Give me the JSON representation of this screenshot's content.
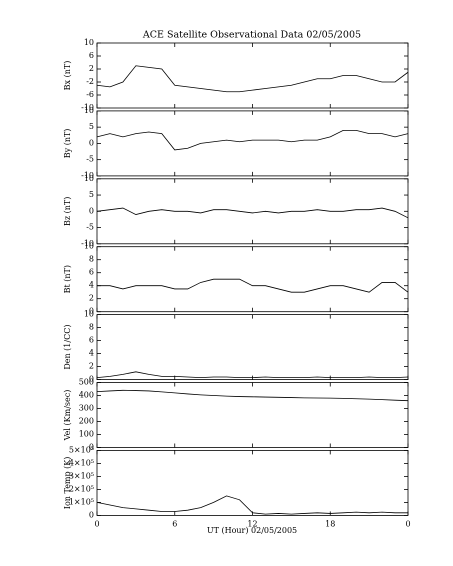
{
  "title": "ACE Satellite Observational Data   02/05/2005",
  "xlabel": "UT (Hour)   02/05/2005",
  "chart_data": [
    {
      "type": "line",
      "ylabel": "Bx (nT)",
      "xlim": [
        0,
        24
      ],
      "ylim": [
        -10,
        10
      ],
      "yticks": [
        -10,
        -6,
        -2,
        2,
        6,
        10
      ],
      "x": [
        0,
        1,
        2,
        3,
        4,
        5,
        6,
        7,
        8,
        9,
        10,
        11,
        12,
        13,
        14,
        15,
        16,
        17,
        18,
        19,
        20,
        21,
        22,
        23,
        24
      ],
      "series": [
        {
          "name": "Bx",
          "color": "#000000",
          "values": [
            -3,
            -3.5,
            -2,
            3,
            2.5,
            2,
            -3,
            -3.5,
            -4,
            -4.5,
            -5,
            -5,
            -4.5,
            -4,
            -3.5,
            -3,
            -2,
            -1,
            -1,
            0,
            0,
            -1,
            -2,
            -2,
            1
          ]
        }
      ]
    },
    {
      "type": "line",
      "ylabel": "By (nT)",
      "xlim": [
        0,
        24
      ],
      "ylim": [
        -10,
        10
      ],
      "yticks": [
        -10,
        -5,
        0,
        5,
        10
      ],
      "x": [
        0,
        1,
        2,
        3,
        4,
        5,
        6,
        7,
        8,
        9,
        10,
        11,
        12,
        13,
        14,
        15,
        16,
        17,
        18,
        19,
        20,
        21,
        22,
        23,
        24
      ],
      "series": [
        {
          "name": "By",
          "color": "#000000",
          "values": [
            2,
            3,
            2,
            3,
            3.5,
            3,
            -2,
            -1.5,
            0,
            0.5,
            1,
            0.5,
            1,
            1,
            1,
            0.5,
            1,
            1,
            2,
            4,
            4,
            3,
            3,
            2,
            3
          ]
        }
      ]
    },
    {
      "type": "line",
      "ylabel": "Bz (nT)",
      "xlim": [
        0,
        24
      ],
      "ylim": [
        -10,
        10
      ],
      "yticks": [
        -10,
        -5,
        0,
        5,
        10
      ],
      "x": [
        0,
        1,
        2,
        3,
        4,
        5,
        6,
        7,
        8,
        9,
        10,
        11,
        12,
        13,
        14,
        15,
        16,
        17,
        18,
        19,
        20,
        21,
        22,
        23,
        24
      ],
      "series": [
        {
          "name": "Bz",
          "color": "#000000",
          "values": [
            0,
            0.5,
            1,
            -1,
            0,
            0.5,
            0,
            0,
            -0.5,
            0.5,
            0.5,
            0,
            -0.5,
            0,
            -0.5,
            0,
            0,
            0.5,
            0,
            0,
            0.5,
            0.5,
            1,
            0,
            -2
          ]
        }
      ]
    },
    {
      "type": "line",
      "ylabel": "Bt (nT)",
      "xlim": [
        0,
        24
      ],
      "ylim": [
        0,
        10
      ],
      "yticks": [
        0,
        2,
        4,
        6,
        8,
        10
      ],
      "x": [
        0,
        1,
        2,
        3,
        4,
        5,
        6,
        7,
        8,
        9,
        10,
        11,
        12,
        13,
        14,
        15,
        16,
        17,
        18,
        19,
        20,
        21,
        22,
        23,
        24
      ],
      "series": [
        {
          "name": "Bt",
          "color": "#000000",
          "values": [
            4,
            4,
            3.5,
            4,
            4,
            4,
            3.5,
            3.5,
            4.5,
            5,
            5,
            5,
            4,
            4,
            3.5,
            3,
            3,
            3.5,
            4,
            4,
            3.5,
            3,
            4.5,
            4.5,
            3
          ]
        }
      ]
    },
    {
      "type": "line",
      "ylabel": "Den (1/CC)",
      "xlim": [
        0,
        24
      ],
      "ylim": [
        0,
        10
      ],
      "yticks": [
        0,
        2,
        4,
        6,
        8,
        10
      ],
      "x": [
        0,
        1,
        2,
        3,
        4,
        5,
        6,
        7,
        8,
        9,
        10,
        11,
        12,
        13,
        14,
        15,
        16,
        17,
        18,
        19,
        20,
        21,
        22,
        23,
        24
      ],
      "series": [
        {
          "name": "Den",
          "color": "#000000",
          "values": [
            0.3,
            0.5,
            0.8,
            1.2,
            0.8,
            0.5,
            0.5,
            0.4,
            0.3,
            0.4,
            0.4,
            0.3,
            0.3,
            0.4,
            0.3,
            0.3,
            0.3,
            0.4,
            0.3,
            0.3,
            0.3,
            0.4,
            0.3,
            0.3,
            0.4
          ]
        }
      ]
    },
    {
      "type": "line",
      "ylabel": "Vel (Km/sec)",
      "xlim": [
        0,
        24
      ],
      "ylim": [
        0,
        500
      ],
      "yticks": [
        0,
        100,
        200,
        300,
        400,
        500
      ],
      "x": [
        0,
        1,
        2,
        3,
        4,
        5,
        6,
        7,
        8,
        9,
        10,
        11,
        12,
        13,
        14,
        15,
        16,
        17,
        18,
        19,
        20,
        21,
        22,
        23,
        24
      ],
      "series": [
        {
          "name": "Vel",
          "color": "#000000",
          "values": [
            430,
            435,
            440,
            438,
            435,
            428,
            420,
            412,
            405,
            400,
            395,
            392,
            390,
            388,
            386,
            384,
            382,
            381,
            380,
            378,
            375,
            372,
            368,
            364,
            360
          ]
        }
      ]
    },
    {
      "type": "line",
      "ylabel": "Ion Temp (K)",
      "xlim": [
        0,
        24
      ],
      "ylim": [
        0,
        500000
      ],
      "yticks": [
        0,
        {
          "value": 100000,
          "label": "1×10⁵"
        },
        {
          "value": 200000,
          "label": "2×10⁵"
        },
        {
          "value": 300000,
          "label": "3×10⁵"
        },
        {
          "value": 400000,
          "label": "4×10⁵"
        },
        {
          "value": 500000,
          "label": "5×10⁵"
        }
      ],
      "xticks": [
        0,
        6,
        12,
        18,
        {
          "value": 24,
          "label": "0"
        }
      ],
      "x": [
        0,
        1,
        2,
        3,
        4,
        5,
        6,
        7,
        8,
        9,
        10,
        11,
        12,
        13,
        14,
        15,
        16,
        17,
        18,
        19,
        20,
        21,
        22,
        23,
        24
      ],
      "series": [
        {
          "name": "Temp",
          "color": "#000000",
          "values": [
            100000,
            80000,
            60000,
            50000,
            40000,
            30000,
            30000,
            40000,
            60000,
            100000,
            150000,
            120000,
            20000,
            10000,
            15000,
            10000,
            15000,
            20000,
            15000,
            20000,
            25000,
            20000,
            25000,
            20000,
            20000
          ]
        }
      ]
    }
  ]
}
